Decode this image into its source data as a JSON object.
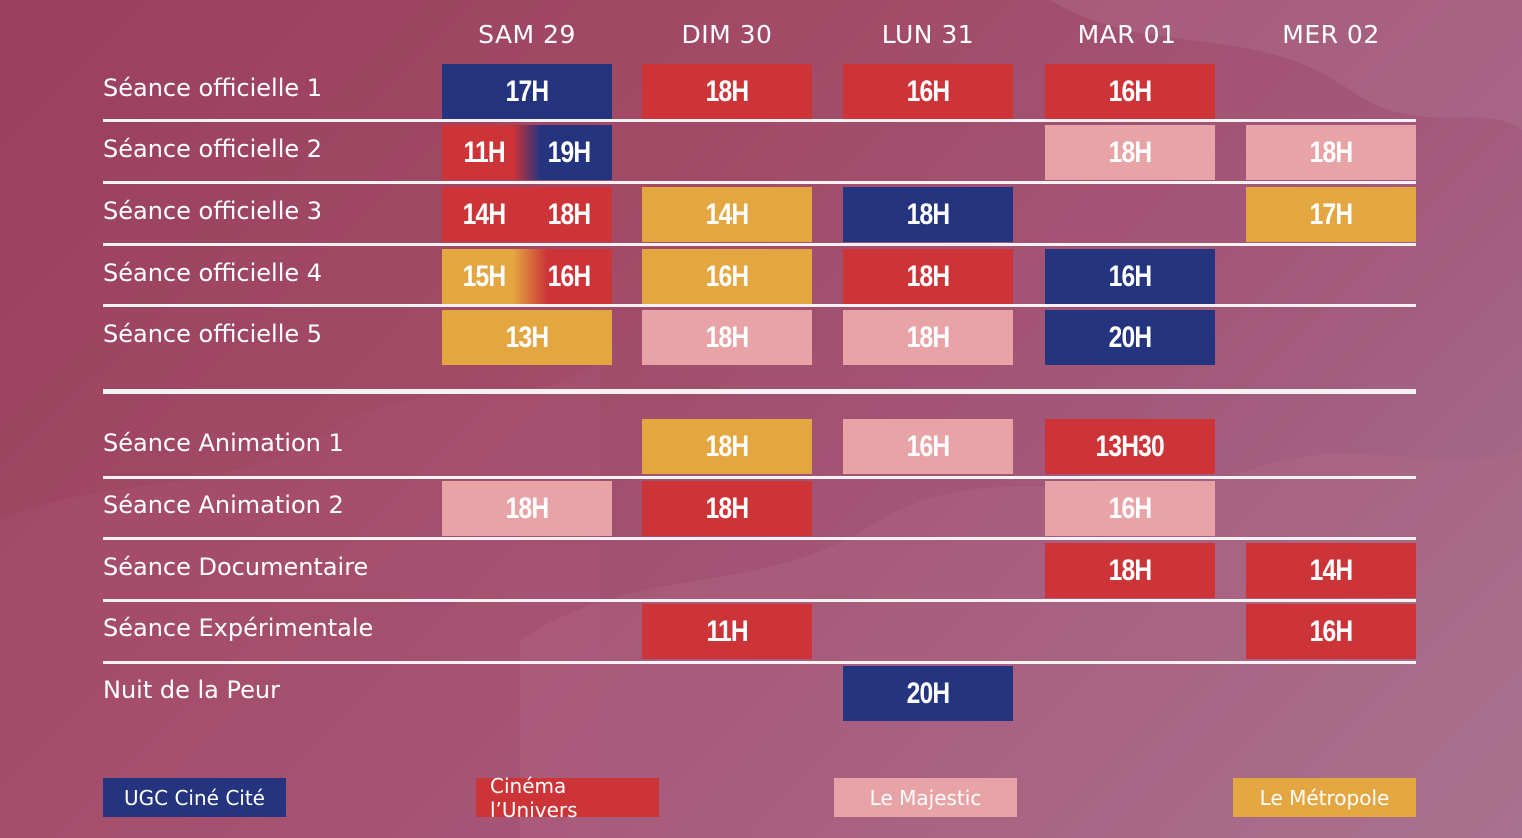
{
  "colors": {
    "ugc": "#24347f",
    "univers": "#cc3438",
    "majestic": "#e8a3a6",
    "metropole": "#e3a641"
  },
  "days": [
    "SAM 29",
    "DIM 30",
    "LUN 31",
    "MAR 01",
    "MER 02"
  ],
  "rows": [
    {
      "label": "Séance officielle 1"
    },
    {
      "label": "Séance officielle 2"
    },
    {
      "label": "Séance officielle 3"
    },
    {
      "label": "Séance officielle 4"
    },
    {
      "label": "Séance officielle 5"
    },
    {
      "label": "Séance Animation 1"
    },
    {
      "label": "Séance Animation 2"
    },
    {
      "label": "Séance Documentaire"
    },
    {
      "label": "Séance Expérimentale"
    },
    {
      "label": "Nuit de la Peur"
    }
  ],
  "slots": {
    "r1": {
      "sam": "17H",
      "dim": "18H",
      "lun": "16H",
      "mar": "16H"
    },
    "r2": {
      "sam_a": "11H",
      "sam_b": "19H",
      "mar": "18H",
      "mer": "18H"
    },
    "r3": {
      "sam_a": "14H",
      "sam_b": "18H",
      "dim": "14H",
      "lun": "18H",
      "mer": "17H"
    },
    "r4": {
      "sam_a": "15H",
      "sam_b": "16H",
      "dim": "16H",
      "lun": "18H",
      "mar": "16H"
    },
    "r5": {
      "sam": "13H",
      "dim": "18H",
      "lun": "18H",
      "mar": "20H"
    },
    "r6": {
      "dim": "18H",
      "lun": "16H",
      "mar": "13H30"
    },
    "r7": {
      "sam": "18H",
      "dim": "18H",
      "mar": "16H"
    },
    "r8": {
      "mar": "18H",
      "mer": "14H"
    },
    "r9": {
      "dim": "11H",
      "mer": "16H"
    },
    "r10": {
      "lun": "20H"
    }
  },
  "legend": {
    "ugc": "UGC Ciné Cité",
    "univers": "Cinéma l’Univers",
    "majestic": "Le Majestic",
    "metropole": "Le Métropole"
  }
}
